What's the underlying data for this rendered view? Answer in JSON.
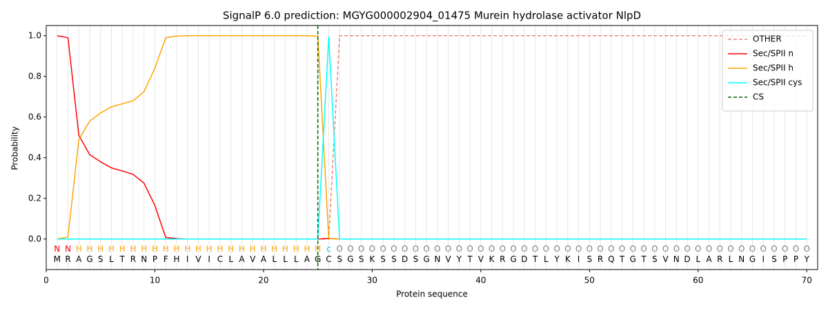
{
  "chart_data": {
    "type": "line",
    "title": "SignalP 6.0 prediction: MGYG000002904_01475 Murein hydrolase activator NlpD",
    "xlabel": "Protein sequence",
    "ylabel": "Probability",
    "xlim": [
      0,
      71
    ],
    "ylim": [
      -0.15,
      1.05
    ],
    "xticks": [
      0,
      10,
      20,
      30,
      40,
      50,
      60,
      70
    ],
    "yticks": [
      {
        "value": 0,
        "label": "0.0"
      },
      {
        "value": 0.2,
        "label": "0.2"
      },
      {
        "value": 0.4,
        "label": "0.4"
      },
      {
        "value": 0.6,
        "label": "0.6"
      },
      {
        "value": 0.8,
        "label": "0.8"
      },
      {
        "value": 1,
        "label": "1.0"
      }
    ],
    "grid": true,
    "legend": "upper right",
    "x": [
      1,
      2,
      3,
      4,
      5,
      6,
      7,
      8,
      9,
      10,
      11,
      12,
      13,
      14,
      15,
      16,
      17,
      18,
      19,
      20,
      21,
      22,
      23,
      24,
      25,
      26,
      27,
      28,
      29,
      30,
      31,
      32,
      33,
      34,
      35,
      36,
      37,
      38,
      39,
      40,
      41,
      42,
      43,
      44,
      45,
      46,
      47,
      48,
      49,
      50,
      51,
      52,
      53,
      54,
      55,
      56,
      57,
      58,
      59,
      60,
      61,
      62,
      63,
      64,
      65,
      66,
      67,
      68,
      69,
      70
    ],
    "series": [
      {
        "name": "OTHER",
        "color": "#f08080",
        "dashed": true,
        "values": [
          0,
          0,
          0,
          0,
          0,
          0,
          0,
          0,
          0,
          0,
          0,
          0,
          0,
          0,
          0,
          0,
          0,
          0,
          0,
          0,
          0,
          0,
          0,
          0,
          0,
          0,
          1,
          1,
          1,
          1,
          1,
          1,
          1,
          1,
          1,
          1,
          1,
          1,
          1,
          1,
          1,
          1,
          1,
          1,
          1,
          1,
          1,
          1,
          1,
          1,
          1,
          1,
          1,
          1,
          1,
          1,
          1,
          1,
          1,
          1,
          1,
          1,
          1,
          1,
          1,
          1,
          1,
          1,
          1,
          1
        ]
      },
      {
        "name": "Sec/SPII n",
        "color": "#ff0000",
        "dashed": false,
        "values": [
          1.0,
          0.99,
          0.51,
          0.415,
          0.38,
          0.35,
          0.335,
          0.318,
          0.275,
          0.165,
          0.008,
          0.002,
          0,
          0,
          0,
          0,
          0,
          0,
          0,
          0,
          0,
          0,
          0,
          0,
          0,
          0.003,
          0,
          0,
          0,
          0,
          0,
          0,
          0,
          0,
          0,
          0,
          0,
          0,
          0,
          0,
          0,
          0,
          0,
          0,
          0,
          0,
          0,
          0,
          0,
          0,
          0,
          0,
          0,
          0,
          0,
          0,
          0,
          0,
          0,
          0,
          0,
          0,
          0,
          0,
          0,
          0,
          0,
          0,
          0,
          0
        ]
      },
      {
        "name": "Sec/SPII h",
        "color": "#ffa500",
        "dashed": false,
        "values": [
          0,
          0.01,
          0.49,
          0.58,
          0.62,
          0.65,
          0.665,
          0.68,
          0.725,
          0.84,
          0.99,
          0.998,
          1,
          1,
          1,
          1,
          1,
          1,
          1,
          1,
          1,
          1,
          1,
          1,
          0.997,
          0.002,
          0,
          0,
          0,
          0,
          0,
          0,
          0,
          0,
          0,
          0,
          0,
          0,
          0,
          0,
          0,
          0,
          0,
          0,
          0,
          0,
          0,
          0,
          0,
          0,
          0,
          0,
          0,
          0,
          0,
          0,
          0,
          0,
          0,
          0,
          0,
          0,
          0,
          0,
          0,
          0,
          0,
          0,
          0,
          0
        ]
      },
      {
        "name": "Sec/SPII cys",
        "color": "#00ffff",
        "dashed": false,
        "values": [
          0,
          0,
          0,
          0,
          0,
          0,
          0,
          0,
          0,
          0,
          0,
          0,
          0,
          0,
          0,
          0,
          0,
          0,
          0,
          0,
          0,
          0,
          0,
          0,
          0,
          0.995,
          0,
          0,
          0,
          0,
          0,
          0,
          0,
          0,
          0,
          0,
          0,
          0,
          0,
          0,
          0,
          0,
          0,
          0,
          0,
          0,
          0,
          0,
          0,
          0,
          0,
          0,
          0,
          0,
          0,
          0,
          0,
          0,
          0,
          0,
          0,
          0,
          0,
          0,
          0,
          0,
          0,
          0,
          0,
          0
        ]
      }
    ],
    "cs": {
      "name": "CS",
      "color": "#006400",
      "x": 25
    },
    "labels": [
      "N",
      "N",
      "H",
      "H",
      "H",
      "H",
      "H",
      "H",
      "H",
      "H",
      "H",
      "H",
      "H",
      "H",
      "H",
      "H",
      "H",
      "H",
      "H",
      "H",
      "H",
      "H",
      "H",
      "H",
      "H",
      "c",
      "O",
      "O",
      "O",
      "O",
      "O",
      "O",
      "O",
      "O",
      "O",
      "O",
      "O",
      "O",
      "O",
      "O",
      "O",
      "O",
      "O",
      "O",
      "O",
      "O",
      "O",
      "O",
      "O",
      "O",
      "O",
      "O",
      "O",
      "O",
      "O",
      "O",
      "O",
      "O",
      "O",
      "O",
      "O",
      "O",
      "O",
      "O",
      "O",
      "O",
      "O",
      "O",
      "O",
      "O"
    ],
    "label_colors": {
      "N": "#ff0000",
      "H": "#ffa500",
      "c": "#00cccc",
      "O": "#808080"
    },
    "sequence": [
      "M",
      "R",
      "A",
      "G",
      "S",
      "L",
      "T",
      "R",
      "N",
      "P",
      "F",
      "H",
      "I",
      "V",
      "I",
      "C",
      "L",
      "A",
      "V",
      "A",
      "L",
      "L",
      "L",
      "A",
      "G",
      "C",
      "S",
      "G",
      "S",
      "K",
      "S",
      "S",
      "D",
      "S",
      "G",
      "N",
      "V",
      "Y",
      "T",
      "V",
      "K",
      "R",
      "G",
      "D",
      "T",
      "L",
      "Y",
      "K",
      "I",
      "S",
      "R",
      "Q",
      "T",
      "G",
      "T",
      "S",
      "V",
      "N",
      "D",
      "L",
      "A",
      "R",
      "L",
      "N",
      "G",
      "I",
      "S",
      "P",
      "P",
      "Y"
    ]
  }
}
